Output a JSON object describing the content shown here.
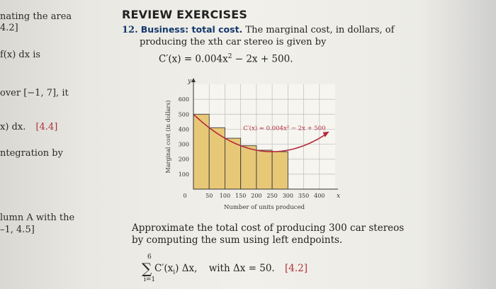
{
  "left_column": [
    {
      "text": "nating the area"
    },
    {
      "text": "4.2]",
      "ref": true
    },
    {
      "text": "f(x) dx is"
    },
    {
      "text": "over [−1, 7], it"
    },
    {
      "text": "x) dx.",
      "ref_text": "[4.4]"
    },
    {
      "text": "ntegration by"
    },
    {
      "text": "lumn A with the"
    },
    {
      "text": "–1, 4.5]",
      "ref": true
    }
  ],
  "header": "REVIEW EXERCISES",
  "problem": {
    "number": "12.",
    "topic": "Business: total cost.",
    "text_line1": " The marginal cost, in dollars, of",
    "text_line2": "producing the xth car stereo is given by",
    "formula_prefix": "C′(x) = 0.004x",
    "formula_exp": "2",
    "formula_suffix": " − 2x + 500."
  },
  "chart_data": {
    "type": "bar",
    "title": "",
    "xlabel": "Number of units produced",
    "ylabel": "Marginal cost (in dollars)",
    "y_axis_letter": "y",
    "x_axis_letter": "x",
    "curve_label": "C′(x) = 0.004x² − 2x + 500",
    "origin_label": "0",
    "x_ticks": [
      50,
      100,
      150,
      200,
      250,
      300,
      350,
      400
    ],
    "y_ticks": [
      100,
      200,
      300,
      400,
      500,
      600
    ],
    "xlim": [
      0,
      450
    ],
    "ylim": [
      0,
      700
    ],
    "bars": [
      {
        "x_left": 0,
        "x_right": 50,
        "value": 500
      },
      {
        "x_left": 50,
        "x_right": 100,
        "value": 410
      },
      {
        "x_left": 100,
        "x_right": 150,
        "value": 340
      },
      {
        "x_left": 150,
        "x_right": 200,
        "value": 290
      },
      {
        "x_left": 200,
        "x_right": 250,
        "value": 260
      },
      {
        "x_left": 250,
        "x_right": 300,
        "value": 250
      }
    ],
    "curve": {
      "a": 0.004,
      "b": -2,
      "c": 500,
      "x_range": [
        0,
        450
      ]
    },
    "grid": true,
    "colors": {
      "bar_fill": "#e7c877",
      "bar_stroke": "#3b3b3b",
      "curve": "#b5293d",
      "grid": "#bdbdbd"
    }
  },
  "instruction_line1": "Approximate the total cost of producing 300 car stereos",
  "instruction_line2": "by computing the sum using left endpoints.",
  "sum": {
    "upper": "6",
    "lower": "i=1",
    "sigma": "∑",
    "term": "C′(x",
    "term_sub": "i",
    "term_end": ") Δx,",
    "with_text": "with Δx = 50.",
    "ref": "[4.2]"
  }
}
